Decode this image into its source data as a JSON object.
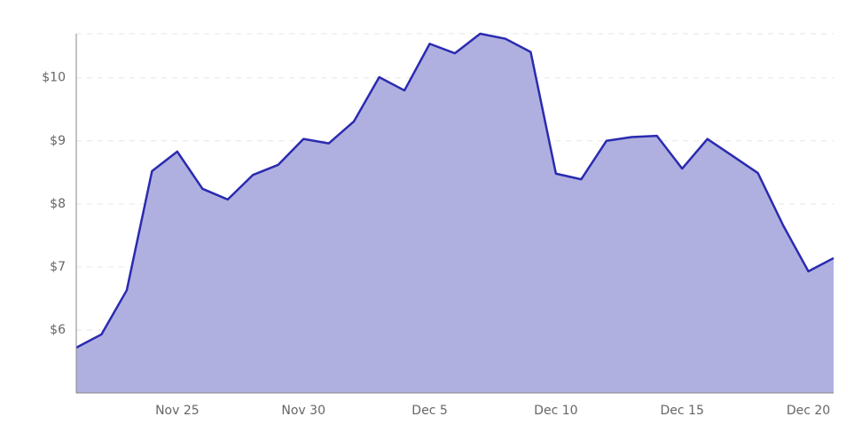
{
  "chart_data": {
    "type": "area",
    "categories": [
      null,
      null,
      null,
      null,
      "Nov 25",
      null,
      null,
      null,
      null,
      "Nov 30",
      null,
      null,
      null,
      null,
      "Dec 5",
      null,
      null,
      null,
      null,
      "Dec 10",
      null,
      null,
      null,
      null,
      "Dec 15",
      null,
      null,
      null,
      null,
      "Dec 20",
      null
    ],
    "series": [
      {
        "color": "#2a2ab0",
        "values": [
          5.72,
          5.93,
          6.63,
          8.52,
          8.83,
          8.24,
          8.07,
          8.46,
          8.62,
          9.03,
          8.96,
          9.31,
          10.01,
          9.8,
          10.54,
          10.39,
          10.7,
          10.62,
          10.41,
          8.48,
          8.39,
          9.0,
          9.06,
          9.08,
          8.56,
          9.03,
          8.76,
          8.49,
          7.66,
          6.93,
          7.14
        ]
      }
    ],
    "fill": "#b0b0e0",
    "ylim": [
      5,
      10.7
    ],
    "yticks": [
      {
        "value": 6,
        "label": "$6"
      },
      {
        "value": 7,
        "label": "$7"
      },
      {
        "value": 8,
        "label": "$8"
      },
      {
        "value": 9,
        "label": "$9"
      },
      {
        "value": 10,
        "label": "$10"
      }
    ],
    "grid": true
  }
}
